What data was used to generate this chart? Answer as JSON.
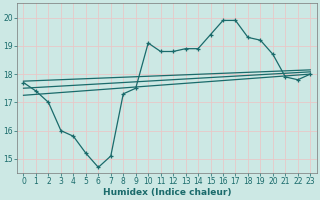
{
  "xlabel": "Humidex (Indice chaleur)",
  "bg_color": "#cce8e4",
  "grid_color": "#e8c8c8",
  "line_color": "#1a6b6b",
  "xlim": [
    -0.5,
    23.5
  ],
  "ylim": [
    14.5,
    20.5
  ],
  "yticks": [
    15,
    16,
    17,
    18,
    19,
    20
  ],
  "xticks": [
    0,
    1,
    2,
    3,
    4,
    5,
    6,
    7,
    8,
    9,
    10,
    11,
    12,
    13,
    14,
    15,
    16,
    17,
    18,
    19,
    20,
    21,
    22,
    23
  ],
  "data_x": [
    0,
    1,
    2,
    3,
    4,
    5,
    6,
    7,
    8,
    9,
    10,
    11,
    12,
    13,
    14,
    15,
    16,
    17,
    18,
    19,
    20,
    21,
    22,
    23
  ],
  "data_y": [
    17.7,
    17.4,
    17.0,
    16.0,
    15.8,
    15.2,
    14.7,
    15.1,
    17.3,
    17.5,
    19.1,
    18.8,
    18.8,
    18.9,
    18.9,
    19.4,
    19.9,
    19.9,
    19.3,
    19.2,
    18.7,
    17.9,
    17.8,
    18.0
  ],
  "line1_x": [
    0,
    23
  ],
  "line1_y": [
    17.75,
    18.15
  ],
  "line2_x": [
    0,
    23
  ],
  "line2_y": [
    17.25,
    18.0
  ],
  "line3_x": [
    0,
    23
  ],
  "line3_y": [
    17.5,
    18.08
  ]
}
